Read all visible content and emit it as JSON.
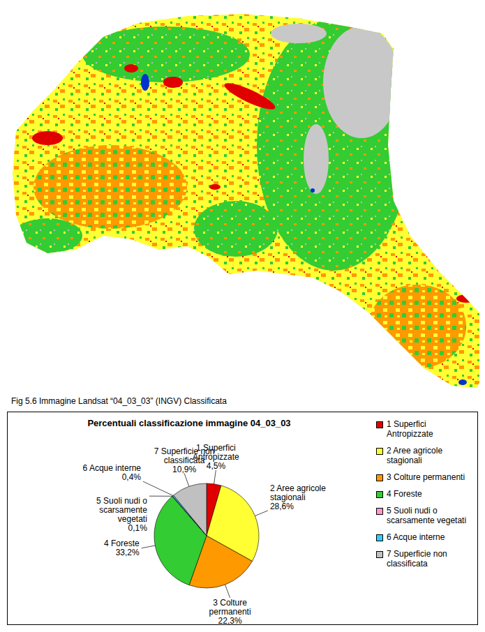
{
  "caption": "Fig 5.6 Immagine Landsat “04_03_03” (INGV) Classificata",
  "chart_data": {
    "type": "pie",
    "title": "Percentuali classificazione immagine 04_03_03",
    "categories": [
      "1 Superfici Antropizzate",
      "2 Aree agricole stagionali",
      "3 Colture permanenti",
      "4 Foreste",
      "5 Suoli nudi o scarsamente vegetati",
      "6 Acque interne",
      "7 Superficie non classificata"
    ],
    "values": [
      4.5,
      28.6,
      22.3,
      33.2,
      0.1,
      0.4,
      10.9
    ],
    "value_labels": [
      "4,5%",
      "28,6%",
      "22,3%",
      "33,2%",
      "0,1%",
      "0,4%",
      "10,9%"
    ],
    "colors": [
      "#e00000",
      "#ffff33",
      "#ff9900",
      "#33cc33",
      "#ff99cc",
      "#33ccff",
      "#c0c0c0"
    ],
    "data_labels": true,
    "legend": "right"
  }
}
